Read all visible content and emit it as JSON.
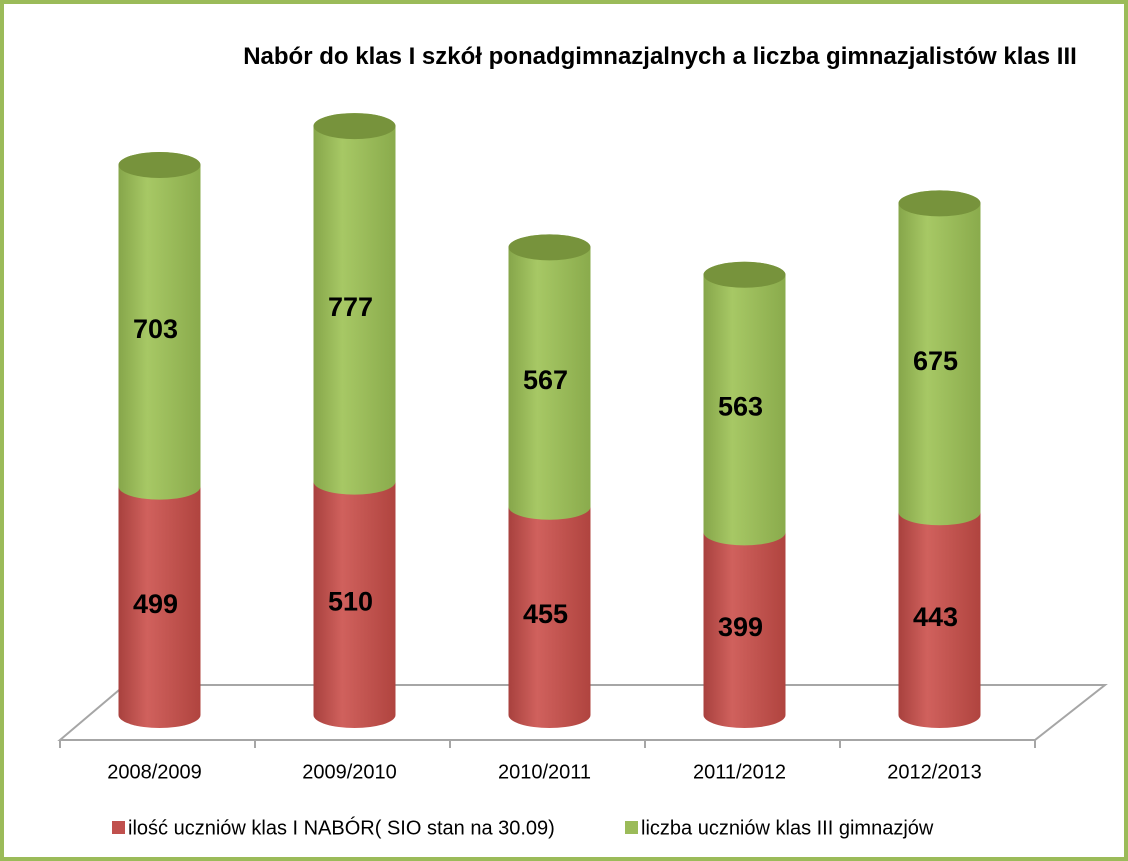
{
  "chart_data": {
    "type": "bar3d-stacked",
    "title": "Nabór do klas I szkół ponadgimnazjalnych a liczba gimnazjalistów klas III",
    "categories": [
      "2008/2009",
      "2009/2010",
      "2010/2011",
      "2011/2012",
      "2012/2013"
    ],
    "series": [
      {
        "name": "ilość uczniów klas I NABÓR( SIO stan na 30.09)",
        "color": "#c0504d",
        "values": [
          499,
          510,
          455,
          399,
          443
        ]
      },
      {
        "name": "liczba uczniów klas III gimnazjów",
        "color": "#9bbb59",
        "values": [
          703,
          777,
          567,
          563,
          675
        ]
      }
    ],
    "legend": "bottom"
  }
}
